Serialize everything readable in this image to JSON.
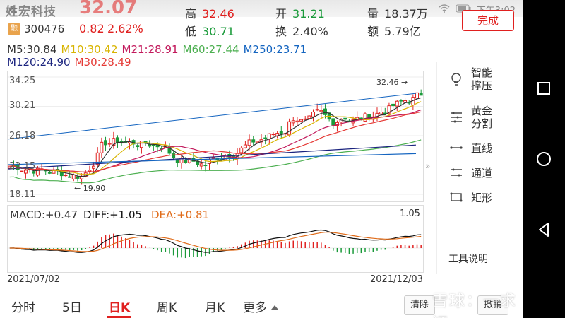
{
  "status": {
    "left": "叫",
    "time": "下午3:02"
  },
  "stock": {
    "name": "姓宏科技",
    "price": "32.07",
    "badge": "融",
    "code": "300476",
    "change": "0.82",
    "change_pct": "2.62%"
  },
  "quote": {
    "high_label": "高",
    "high": "32.46",
    "low_label": "低",
    "low": "30.71",
    "open_label": "开",
    "open": "31.21",
    "turnover_label": "换",
    "turnover": "2.40%",
    "volume_label": "量",
    "volume": "18.37万",
    "amount_label": "额",
    "amount": "5.79亿"
  },
  "done_button": "完成",
  "ma": {
    "m5": "M5:30.84",
    "m10": "M10:30.42",
    "m21": "M21:28.91",
    "m60": "M60:27.44",
    "m250": "M250:23.71",
    "m120": "M120:24.90",
    "m30": "M30:28.49"
  },
  "y_axis": [
    "34.25",
    "30.21",
    "26.18",
    "22.15",
    "18.11"
  ],
  "annotations": {
    "high": "32.46",
    "low": "19.90"
  },
  "macd": {
    "macd": "MACD:+0.47",
    "diff": "DIFF:+1.05",
    "dea": "DEA:+0.81",
    "max": "1.05"
  },
  "dates": {
    "start": "2021/07/02",
    "end": "2021/12/03"
  },
  "tools": [
    {
      "icon": "lightbulb-icon",
      "label1": "智能",
      "label2": "撑压"
    },
    {
      "icon": "golden-split-icon",
      "label1": "黄金",
      "label2": "分割"
    },
    {
      "icon": "line-icon",
      "label1": "直线",
      "label2": ""
    },
    {
      "icon": "channel-icon",
      "label1": "通道",
      "label2": ""
    },
    {
      "icon": "rectangle-icon",
      "label1": "矩形",
      "label2": ""
    }
  ],
  "tool_help": "工具说明",
  "tabs": [
    "分时",
    "5日",
    "日K",
    "周K",
    "月K",
    "更多"
  ],
  "active_tab": "日K",
  "actions": {
    "clear": "清除",
    "undo": "撤销"
  },
  "watermark": "雪球：一求证",
  "colors": {
    "up": "#e0201f",
    "down": "#1a9a3a",
    "m5": "#333333",
    "m10": "#d8b400",
    "m21": "#c2185b",
    "m60": "#4caf50",
    "m250": "#1565c0",
    "m120": "#1a237e",
    "m30": "#e53935"
  }
}
